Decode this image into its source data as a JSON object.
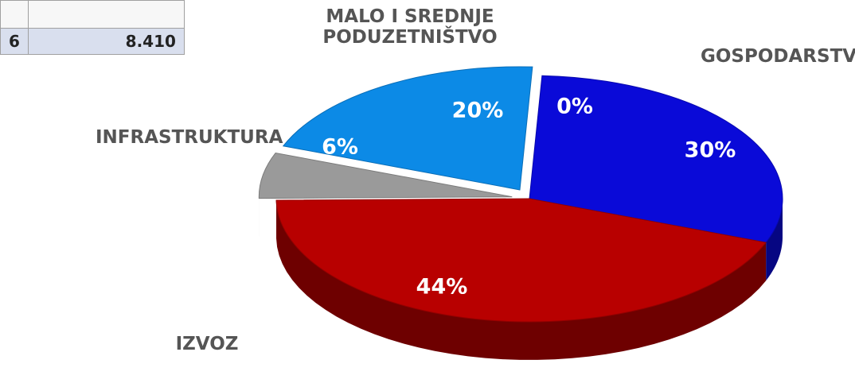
{
  "table": {
    "rows": [
      [
        "6",
        "8.410"
      ]
    ]
  },
  "chart_data": {
    "type": "pie",
    "categories": [
      null,
      "GOSPODARSTVO",
      "IZVOZ",
      "INFRASTRUKTURA",
      "MALO I SREDNJE PODUZETNIŠTVO"
    ],
    "values": [
      0,
      30,
      44,
      6,
      20
    ],
    "value_labels": [
      "0%",
      "30%",
      "44%",
      "6%",
      "20%"
    ],
    "colors": [
      "#cfe0f5",
      "#0a0ad8",
      "#b80000",
      "#9a9a9a",
      "#0c8ae6"
    ]
  }
}
